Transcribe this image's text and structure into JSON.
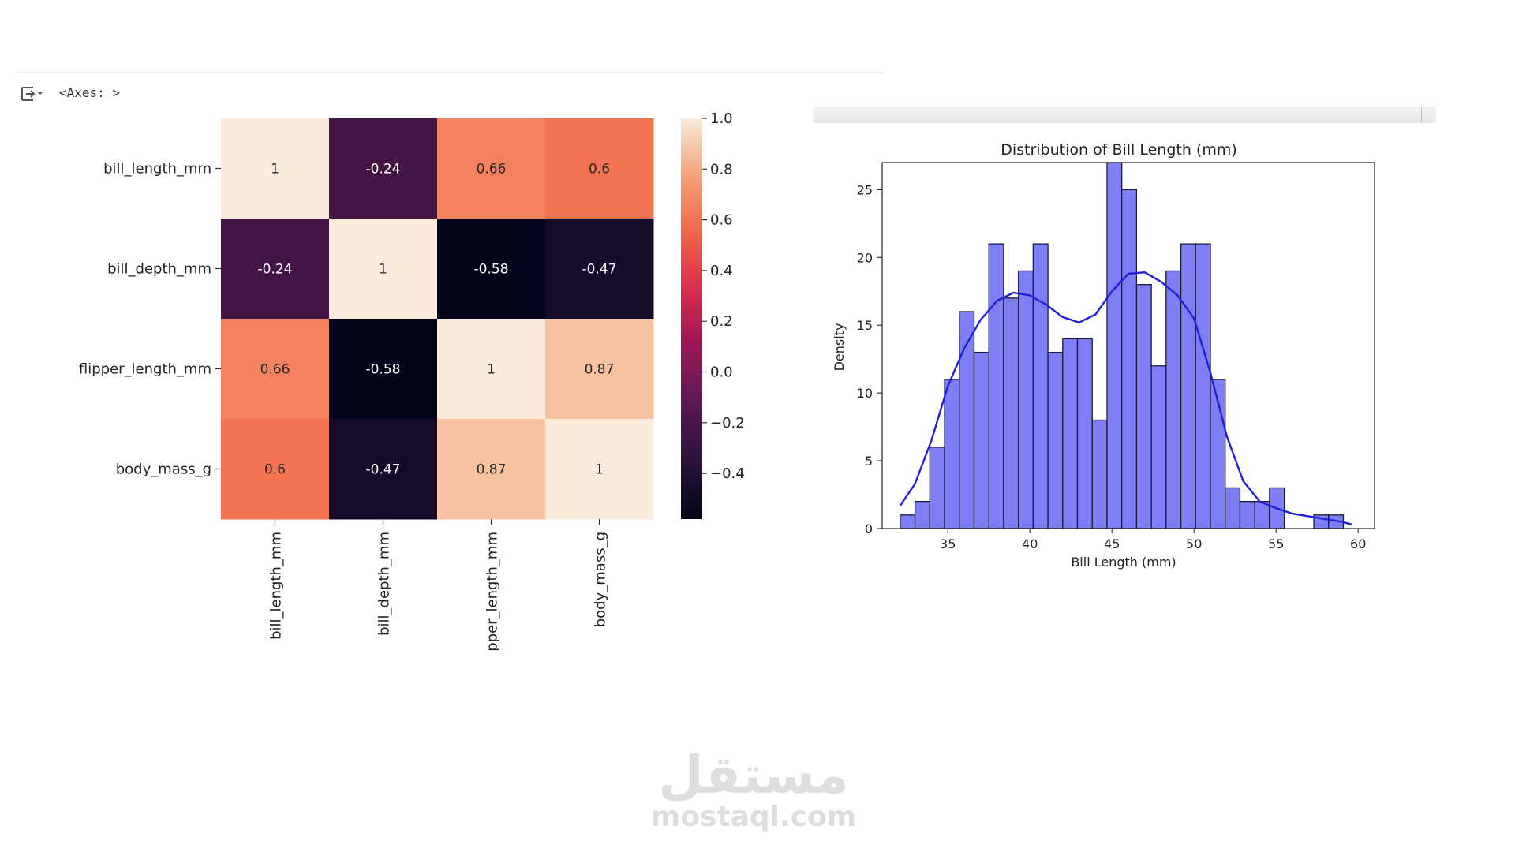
{
  "output": {
    "prompt": "<Axes: >",
    "icon": "output-toggle-icon"
  },
  "watermark": {
    "logo": "مستقل",
    "site": "mostaql.com"
  },
  "colors": {
    "hist_fill": "#7f7ff5",
    "hist_edge": "#1a1a33",
    "kde_line": "#2020d8",
    "background": "#ffffff"
  },
  "chart_data": [
    {
      "type": "heatmap",
      "title": "",
      "row_labels": [
        "bill_length_mm",
        "bill_depth_mm",
        "flipper_length_mm",
        "body_mass_g"
      ],
      "col_labels": [
        "bill_length_mm",
        "bill_depth_mm",
        "pper_length_mm",
        "body_mass_g"
      ],
      "values": [
        [
          1,
          -0.24,
          0.66,
          0.6
        ],
        [
          -0.24,
          1,
          -0.58,
          -0.47
        ],
        [
          0.66,
          -0.58,
          1,
          0.87
        ],
        [
          0.6,
          -0.47,
          0.87,
          1
        ]
      ],
      "annotations": [
        [
          "1",
          "-0.24",
          "0.66",
          "0.6"
        ],
        [
          "-0.24",
          "1",
          "-0.58",
          "-0.47"
        ],
        [
          "0.66",
          "-0.58",
          "1",
          "0.87"
        ],
        [
          "0.6",
          "-0.47",
          "0.87",
          "1"
        ]
      ],
      "colormap": "rocket",
      "colorbar": {
        "range": [
          -0.58,
          1.0
        ],
        "ticks": [
          1.0,
          0.8,
          0.6,
          0.4,
          0.2,
          0.0,
          -0.2,
          -0.4
        ],
        "tick_labels": [
          "1.0",
          "0.8",
          "0.6",
          "0.4",
          "0.2",
          "0.0",
          "−0.2",
          "−0.4"
        ]
      }
    },
    {
      "type": "bar",
      "subtype": "histogram-with-kde",
      "title": "Distribution of Bill Length (mm)",
      "xlabel": "Bill Length (mm)",
      "ylabel": "Density",
      "xlim": [
        31.0,
        61.0
      ],
      "ylim": [
        0,
        27.0
      ],
      "x_ticks": [
        35,
        40,
        45,
        50,
        55,
        60
      ],
      "y_ticks": [
        0,
        5,
        10,
        15,
        20,
        25
      ],
      "bin_start": 32.1,
      "bin_width": 0.9,
      "counts": [
        1,
        2,
        6,
        11,
        16,
        13,
        21,
        17,
        19,
        21,
        13,
        14,
        14,
        8,
        27,
        25,
        18,
        12,
        19,
        21,
        21,
        11,
        3,
        2,
        2,
        3,
        0,
        0,
        1,
        1
      ],
      "kde": {
        "x": [
          32.1,
          33,
          34,
          35,
          36,
          37,
          38,
          39,
          40,
          41,
          42,
          43,
          44,
          45,
          46,
          47,
          48,
          49,
          50,
          51,
          52,
          53,
          54,
          55,
          56,
          57,
          58,
          59,
          59.6
        ],
        "y": [
          1.7,
          3.3,
          6.5,
          10.5,
          13.3,
          15.4,
          16.8,
          17.4,
          17.2,
          16.5,
          15.6,
          15.2,
          15.8,
          17.5,
          18.8,
          18.9,
          18.2,
          17.2,
          15.5,
          11.5,
          6.8,
          3.5,
          2.0,
          1.5,
          1.1,
          0.9,
          0.7,
          0.5,
          0.3
        ]
      }
    }
  ]
}
